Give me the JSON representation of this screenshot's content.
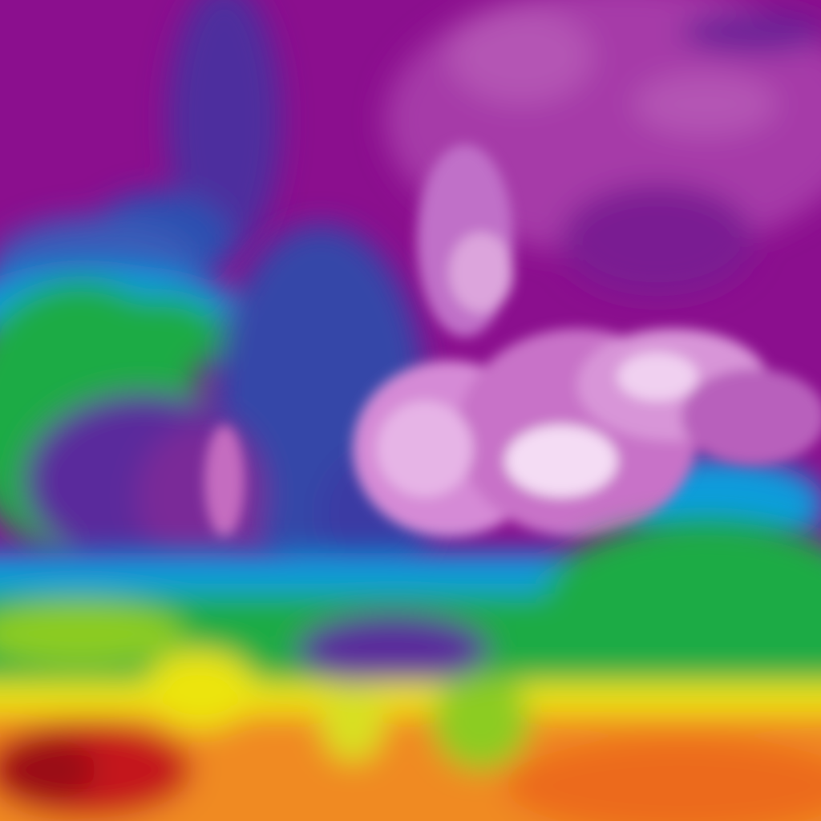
{
  "map": {
    "kind": "temperature-field",
    "colors": {
      "very_cold": "#f4dcf4",
      "cold_light": "#d58ad6",
      "magenta": "#a63aa8",
      "purple": "#8b0f8e",
      "violet": "#5a2a9c",
      "blue": "#2f4fb0",
      "cyan": "#0a9ddc",
      "green": "#1fab45",
      "lime": "#8ccc20",
      "yellow": "#ece40f",
      "orange": "#f08a20",
      "deep_orange": "#ec6a1c",
      "red": "#c4121c",
      "dark_red": "#9a0a18"
    }
  }
}
